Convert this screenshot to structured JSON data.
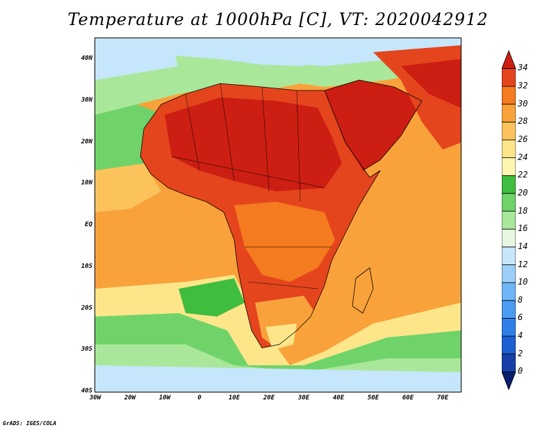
{
  "title": "Temperature at 1000hPa [C], VT: 2020042912",
  "credit": "GrADS: IGES/COLA",
  "map": {
    "region": "Africa and surrounding oceans",
    "lon_range": [
      -30,
      75
    ],
    "lat_range": [
      -40,
      45
    ],
    "lat_labels": [
      "40N",
      "30N",
      "20N",
      "10N",
      "EQ",
      "10S",
      "20S",
      "30S",
      "40S"
    ],
    "lon_labels": [
      "30W",
      "20W",
      "10W",
      "0",
      "10E",
      "20E",
      "30E",
      "40E",
      "50E",
      "60E",
      "70E"
    ]
  },
  "colorbar": {
    "levels": [
      "0",
      "2",
      "4",
      "6",
      "8",
      "10",
      "12",
      "14",
      "16",
      "18",
      "20",
      "22",
      "24",
      "26",
      "28",
      "30",
      "32",
      "34"
    ],
    "colors": [
      "#0a1e6e",
      "#1640a8",
      "#1e5fd2",
      "#2e7fe8",
      "#4a9bf2",
      "#6fb6f7",
      "#9bcff8",
      "#c6e6fb",
      "#e8f8e0",
      "#a9e79a",
      "#6fd36a",
      "#3fbd3f",
      "#fdf7b0",
      "#fde68a",
      "#fcc35d",
      "#f9a23b",
      "#f47b1f",
      "#e4451d",
      "#cc1e12"
    ]
  }
}
